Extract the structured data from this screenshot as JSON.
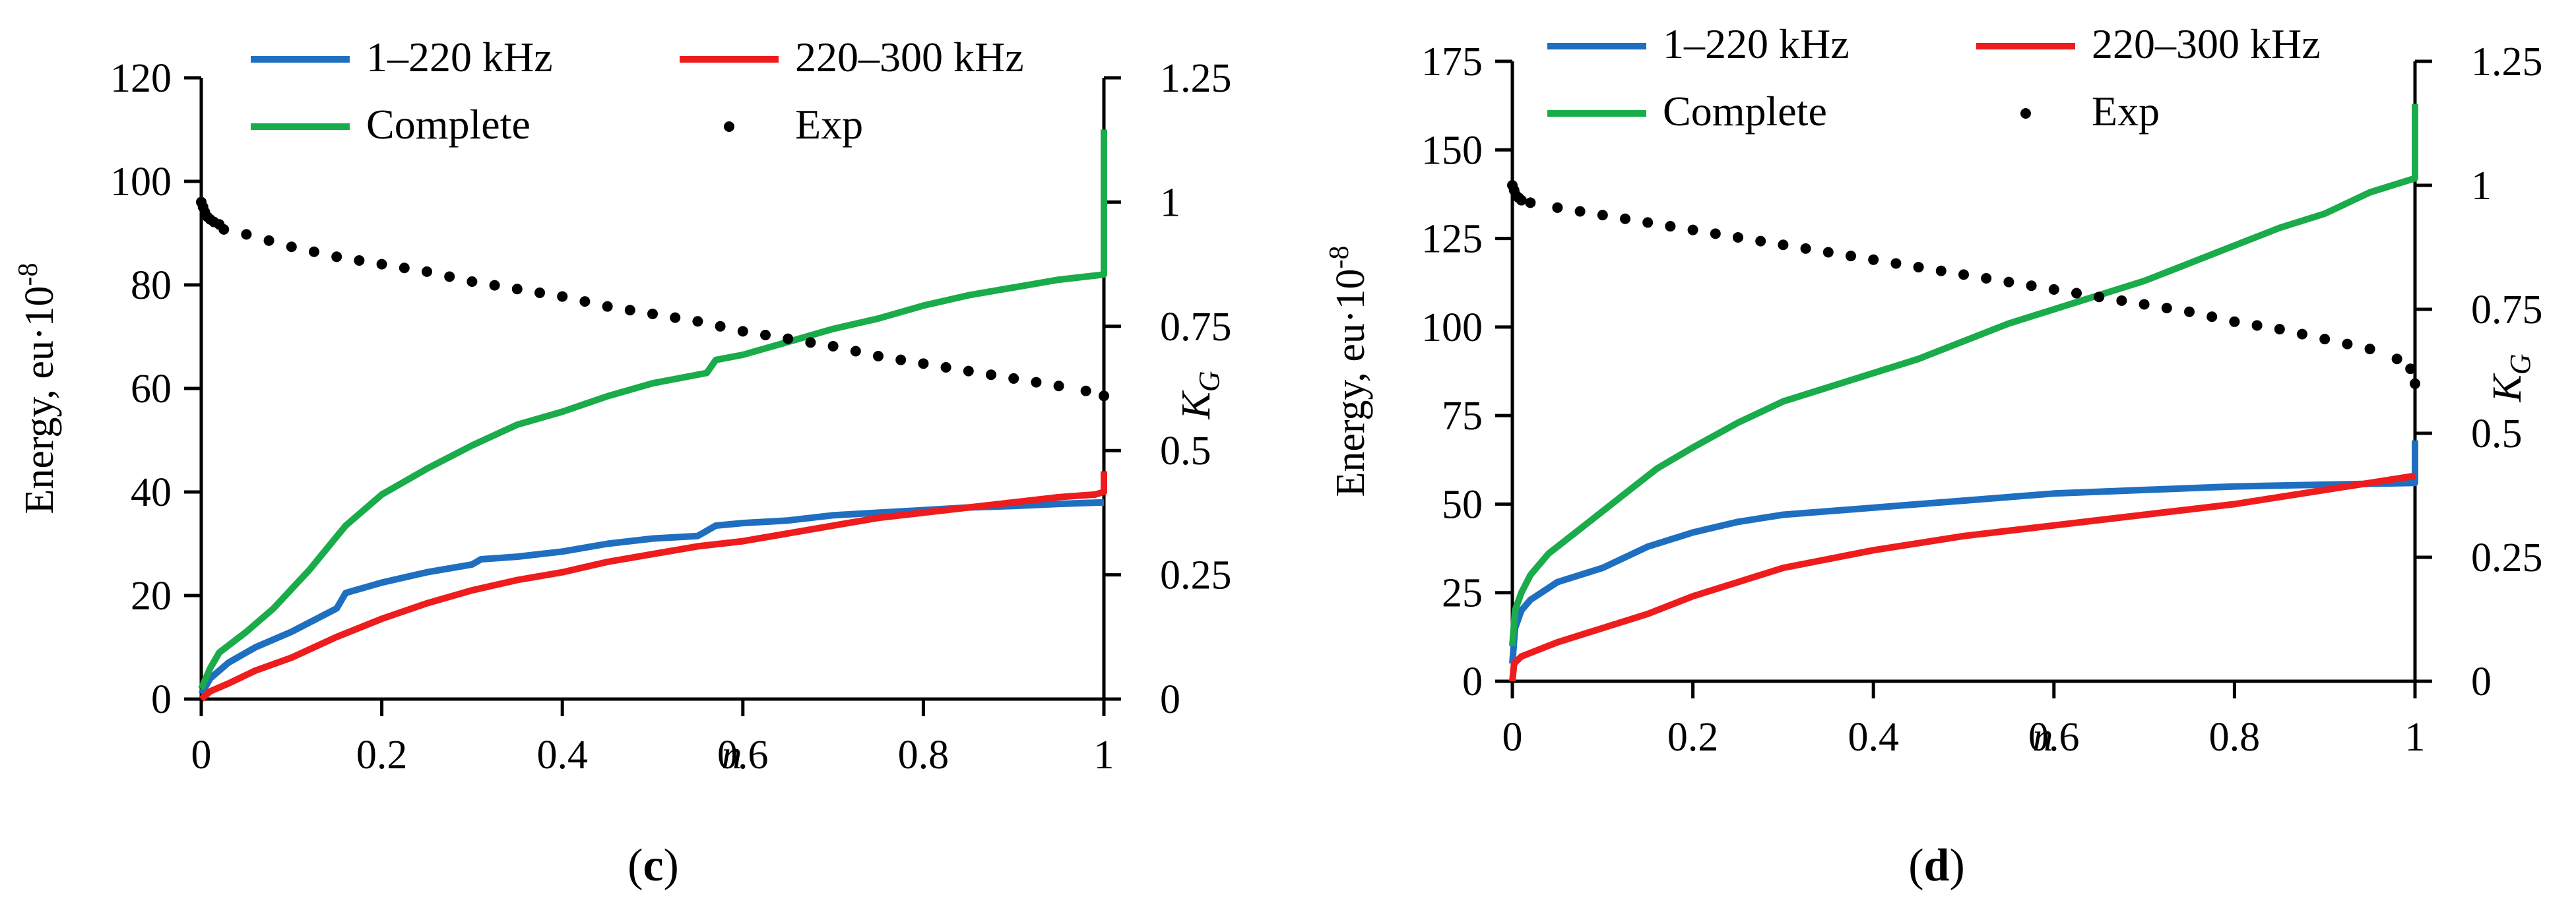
{
  "figure": {
    "panels": [
      "c",
      "d"
    ]
  },
  "chart_data": [
    {
      "type": "line",
      "panel": "c",
      "caption": {
        "open": "(",
        "letter": "c",
        "close": ")"
      },
      "xlabel": "n",
      "ylabel": "Energy, eu·10",
      "ylabel_exp": "-8",
      "y2label": "K",
      "y2label_sub": "G",
      "xlim": [
        0,
        1
      ],
      "ylim": [
        0,
        120
      ],
      "y2lim": [
        0,
        1.25
      ],
      "xticks": [
        0,
        0.2,
        0.4,
        0.6,
        0.8,
        1
      ],
      "xtick_labels": [
        "0",
        "0.2",
        "0.4",
        "0.6",
        "0.8",
        "1"
      ],
      "yticks": [
        0,
        20,
        40,
        60,
        80,
        100,
        120
      ],
      "ytick_labels": [
        "0",
        "20",
        "40",
        "60",
        "80",
        "100",
        "120"
      ],
      "y2ticks": [
        0,
        0.25,
        0.5,
        0.75,
        1,
        1.25
      ],
      "y2tick_labels": [
        "0",
        "0.25",
        "0.5",
        "0.75",
        "1",
        "1.25"
      ],
      "legend": [
        "1–220 kHz",
        "220–300 kHz",
        "Complete",
        "Exp"
      ],
      "series": [
        {
          "name": "1–220 kHz",
          "color": "#1f6fc1",
          "axis": "left",
          "style": "line",
          "x": [
            0,
            0.01,
            0.03,
            0.06,
            0.1,
            0.15,
            0.16,
            0.2,
            0.25,
            0.3,
            0.31,
            0.35,
            0.4,
            0.45,
            0.5,
            0.55,
            0.56,
            0.57,
            0.6,
            0.65,
            0.7,
            0.75,
            0.8,
            0.85,
            0.9,
            0.95,
            1.0
          ],
          "y": [
            1,
            4,
            7,
            10,
            13,
            17.5,
            20.5,
            22.5,
            24.5,
            26,
            27,
            27.5,
            28.5,
            30,
            31,
            31.5,
            32.5,
            33.5,
            34,
            34.5,
            35.5,
            36,
            36.5,
            37,
            37.3,
            37.7,
            38
          ]
        },
        {
          "name": "220–300 kHz",
          "color": "#ee1c1c",
          "axis": "left",
          "style": "line",
          "x": [
            0,
            0.01,
            0.03,
            0.06,
            0.1,
            0.15,
            0.2,
            0.25,
            0.3,
            0.35,
            0.4,
            0.45,
            0.5,
            0.55,
            0.6,
            0.65,
            0.7,
            0.75,
            0.8,
            0.85,
            0.9,
            0.95,
            0.99,
            1.0,
            1.0
          ],
          "y": [
            0,
            1.5,
            3,
            5.5,
            8,
            12,
            15.5,
            18.5,
            21,
            23,
            24.5,
            26.5,
            28,
            29.5,
            30.5,
            32,
            33.5,
            35,
            36,
            37,
            38,
            39,
            39.5,
            40,
            44
          ]
        },
        {
          "name": "Complete",
          "color": "#1aab4b",
          "axis": "left",
          "style": "line",
          "x": [
            0,
            0.01,
            0.02,
            0.05,
            0.08,
            0.12,
            0.16,
            0.2,
            0.25,
            0.3,
            0.35,
            0.4,
            0.45,
            0.5,
            0.56,
            0.57,
            0.6,
            0.65,
            0.7,
            0.75,
            0.8,
            0.85,
            0.9,
            0.95,
            1.0,
            1.0
          ],
          "y": [
            2,
            6,
            9,
            13,
            17.5,
            25,
            33.5,
            39.5,
            44.5,
            49,
            53,
            55.5,
            58.5,
            61,
            63,
            65.5,
            66.5,
            69,
            71.5,
            73.5,
            76,
            78,
            79.5,
            81,
            82,
            110
          ]
        },
        {
          "name": "Exp",
          "color": "#000000",
          "axis": "right",
          "style": "dots",
          "x": [
            0,
            0.002,
            0.004,
            0.007,
            0.01,
            0.014,
            0.02,
            0.025,
            0.05,
            0.1,
            0.15,
            0.2,
            0.25,
            0.3,
            0.35,
            0.4,
            0.45,
            0.5,
            0.55,
            0.6,
            0.65,
            0.7,
            0.75,
            0.8,
            0.85,
            0.9,
            0.95,
            0.98,
            1.0
          ],
          "y": [
            1.0,
            0.99,
            0.98,
            0.97,
            0.965,
            0.96,
            0.955,
            0.945,
            0.935,
            0.91,
            0.89,
            0.875,
            0.86,
            0.84,
            0.825,
            0.81,
            0.79,
            0.775,
            0.76,
            0.74,
            0.725,
            0.71,
            0.69,
            0.675,
            0.66,
            0.645,
            0.63,
            0.62,
            0.61
          ]
        }
      ]
    },
    {
      "type": "line",
      "panel": "d",
      "caption": {
        "open": "(",
        "letter": "d",
        "close": ")"
      },
      "xlabel": "n",
      "ylabel": "Energy, eu·10",
      "ylabel_exp": "-8",
      "y2label": "K",
      "y2label_sub": "G",
      "xlim": [
        0,
        1
      ],
      "ylim": [
        0,
        175
      ],
      "y2lim": [
        0,
        1.25
      ],
      "xticks": [
        0,
        0.2,
        0.4,
        0.6,
        0.8,
        1
      ],
      "xtick_labels": [
        "0",
        "0.2",
        "0.4",
        "0.6",
        "0.8",
        "1"
      ],
      "yticks": [
        0,
        25,
        50,
        75,
        100,
        125,
        150,
        175
      ],
      "ytick_labels": [
        "0",
        "25",
        "50",
        "75",
        "100",
        "125",
        "150",
        "175"
      ],
      "y2ticks": [
        0,
        0.25,
        0.5,
        0.75,
        1,
        1.25
      ],
      "y2tick_labels": [
        "0",
        "0.25",
        "0.5",
        "0.75",
        "1",
        "1.25"
      ],
      "legend": [
        "1–220 kHz",
        "220–300 kHz",
        "Complete",
        "Exp"
      ],
      "series": [
        {
          "name": "1–220 kHz",
          "color": "#1f6fc1",
          "axis": "left",
          "style": "line",
          "x": [
            0,
            0.003,
            0.01,
            0.02,
            0.05,
            0.1,
            0.15,
            0.2,
            0.25,
            0.3,
            0.4,
            0.5,
            0.6,
            0.7,
            0.8,
            0.9,
            1.0,
            1.0
          ],
          "y": [
            5,
            15,
            20,
            23,
            28,
            32,
            38,
            42,
            45,
            47,
            49,
            51,
            53,
            54,
            55,
            55.5,
            56,
            68
          ]
        },
        {
          "name": "220–300 kHz",
          "color": "#ee1c1c",
          "axis": "left",
          "style": "line",
          "x": [
            0,
            0.002,
            0.01,
            0.05,
            0.1,
            0.15,
            0.2,
            0.25,
            0.3,
            0.4,
            0.5,
            0.6,
            0.7,
            0.8,
            0.9,
            1.0
          ],
          "y": [
            0,
            5,
            7,
            11,
            15,
            19,
            24,
            28,
            32,
            37,
            41,
            44,
            47,
            50,
            54,
            58
          ]
        },
        {
          "name": "Complete",
          "color": "#1aab4b",
          "axis": "left",
          "style": "line",
          "x": [
            0,
            0.003,
            0.01,
            0.02,
            0.04,
            0.07,
            0.1,
            0.13,
            0.16,
            0.2,
            0.25,
            0.3,
            0.35,
            0.4,
            0.45,
            0.5,
            0.55,
            0.6,
            0.65,
            0.7,
            0.75,
            0.8,
            0.85,
            0.9,
            0.95,
            1.0,
            1.0
          ],
          "y": [
            10,
            20,
            25,
            30,
            36,
            42,
            48,
            54,
            60,
            66,
            73,
            79,
            83,
            87,
            91,
            96,
            101,
            105,
            109,
            113,
            118,
            123,
            128,
            132,
            138,
            142,
            163
          ]
        },
        {
          "name": "Exp",
          "color": "#000000",
          "axis": "right",
          "style": "dots",
          "x": [
            0,
            0.002,
            0.004,
            0.007,
            0.01,
            0.02,
            0.05,
            0.1,
            0.15,
            0.2,
            0.25,
            0.3,
            0.35,
            0.4,
            0.45,
            0.5,
            0.55,
            0.6,
            0.65,
            0.7,
            0.75,
            0.8,
            0.85,
            0.9,
            0.95,
            0.98,
            0.995,
            1.0
          ],
          "y": [
            1.0,
            0.99,
            0.98,
            0.975,
            0.97,
            0.965,
            0.955,
            0.94,
            0.925,
            0.91,
            0.895,
            0.88,
            0.865,
            0.85,
            0.835,
            0.82,
            0.805,
            0.79,
            0.775,
            0.76,
            0.745,
            0.725,
            0.71,
            0.69,
            0.67,
            0.65,
            0.63,
            0.6
          ]
        }
      ]
    }
  ]
}
